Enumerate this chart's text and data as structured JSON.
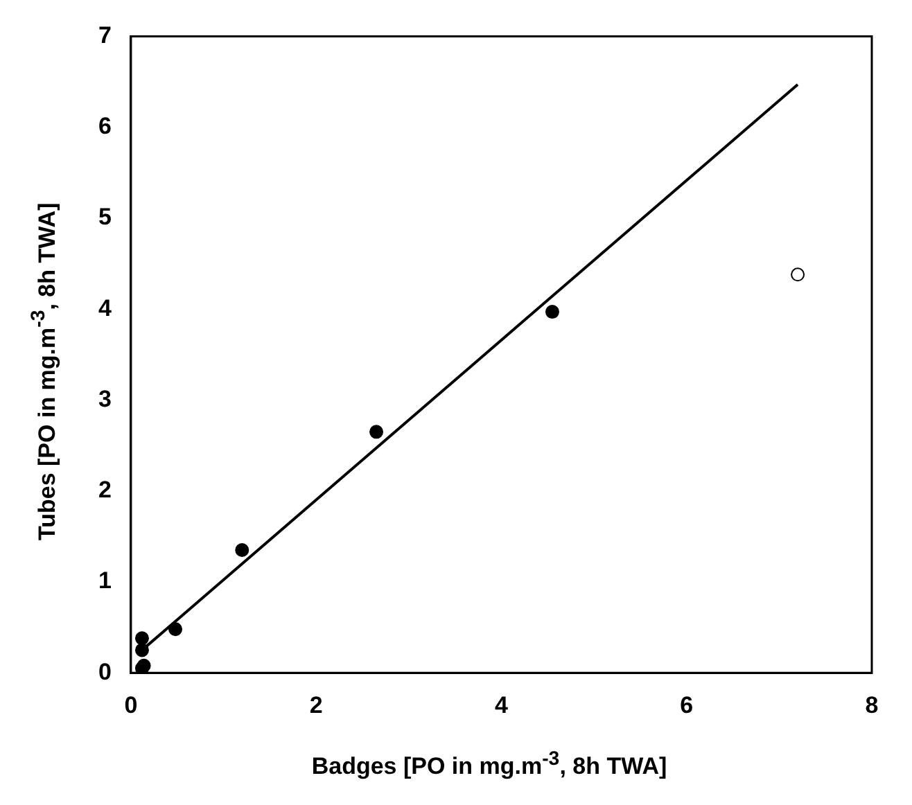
{
  "chart_data": {
    "type": "scatter",
    "xlabel": "Badges   [PO in mg.m$^{-3}$, 8h TWA]",
    "ylabel": "Tubes   [PO in mg.m$^{-3}$, 8h TWA]",
    "xlim": [
      0,
      8
    ],
    "xticks": [
      0,
      2,
      4,
      6,
      8
    ],
    "ylim": [
      0,
      7
    ],
    "yticks": [
      0,
      1,
      2,
      3,
      4,
      5,
      6,
      7
    ],
    "grid": false,
    "legend": false,
    "marker": "circle",
    "series": [
      {
        "color": "#000000",
        "x": [
          0.12,
          0.12,
          0.14,
          0.12,
          0.48,
          1.2,
          2.65,
          4.55
        ],
        "values": [
          0.38,
          0.25,
          0.08,
          0.05,
          0.48,
          1.35,
          2.65,
          3.97
        ]
      },
      {
        "color": "#ffffff",
        "x": [
          7.2
        ],
        "values": [
          4.38
        ]
      },
      {
        "type": "line",
        "marker": "none",
        "color": "#000000",
        "x": [
          0.12,
          7.2
        ],
        "values": [
          0.25,
          6.47
        ]
      }
    ]
  }
}
